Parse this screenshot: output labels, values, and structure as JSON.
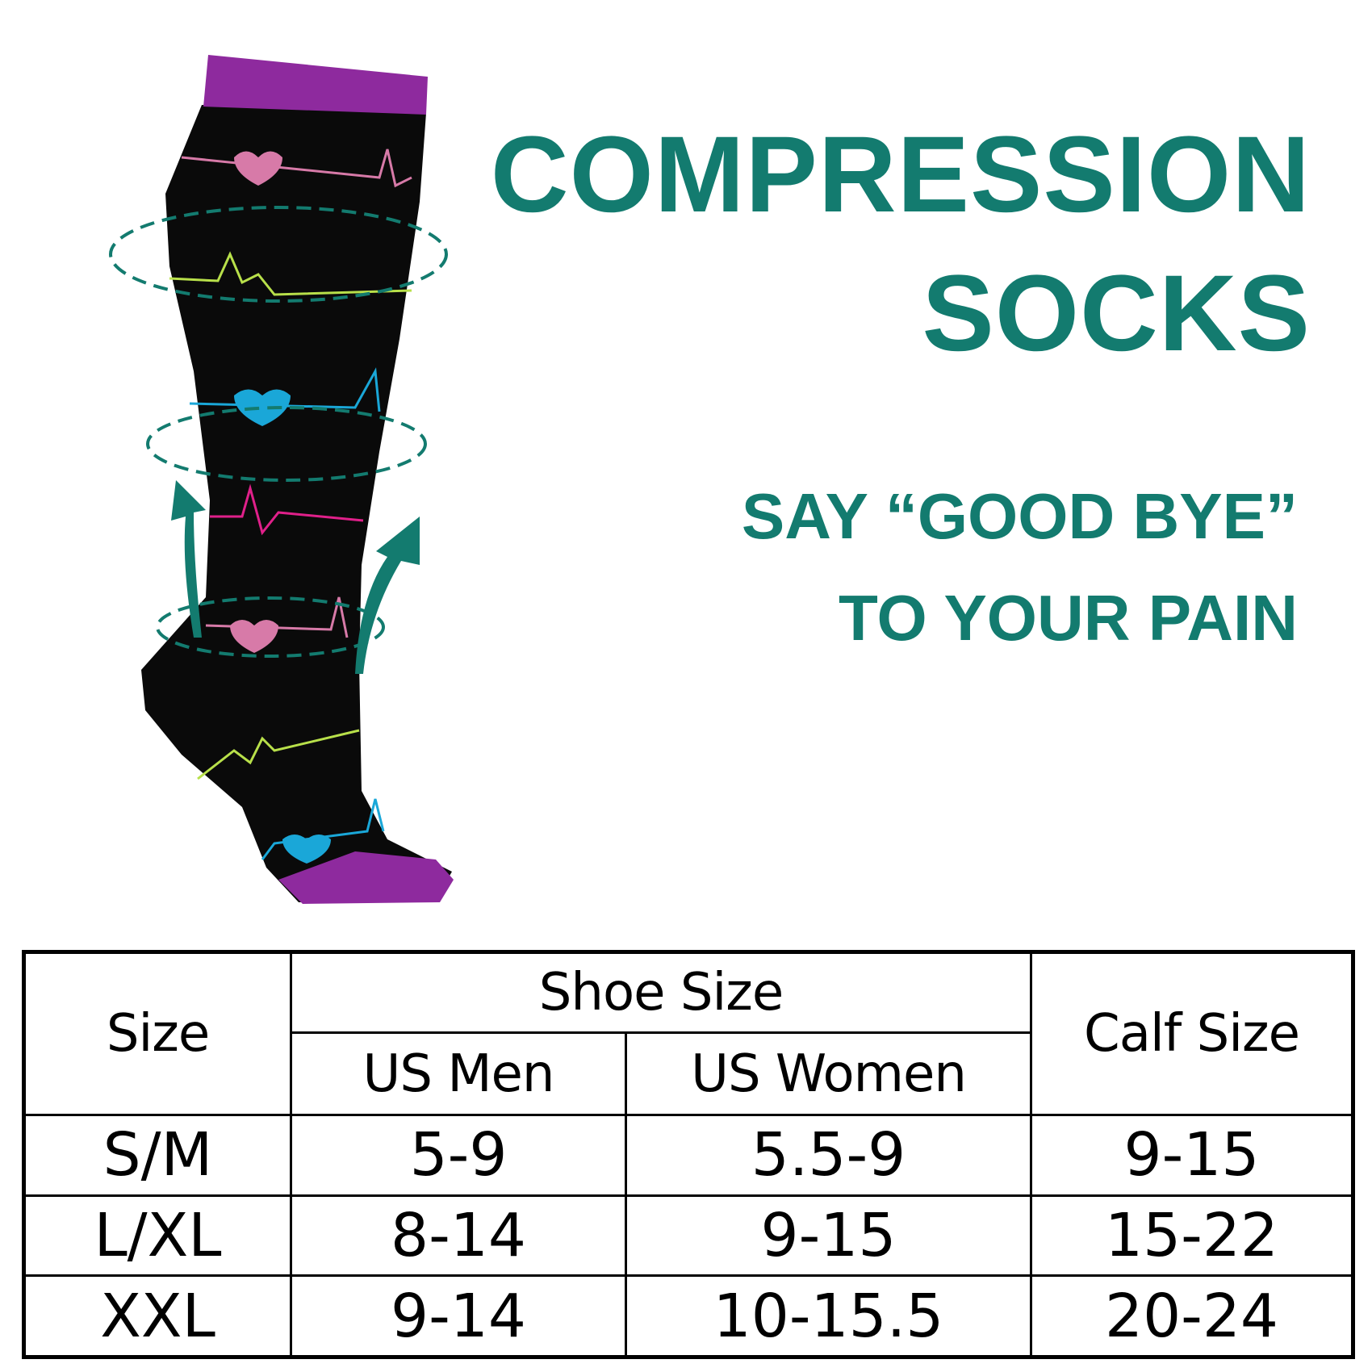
{
  "headline": {
    "line1": "COMPRESSION",
    "line2": "SOCKS"
  },
  "tagline": {
    "line1": "SAY “GOOD BYE”",
    "line2": "TO YOUR PAIN"
  },
  "colors": {
    "accent": "#137b6f",
    "sock_body": "#0a0a0a",
    "sock_trim": "#8e2a9e"
  },
  "size_chart": {
    "headers": {
      "size": "Size",
      "shoe_size": "Shoe Size",
      "us_men": "US Men",
      "us_women": "US Women",
      "calf_size": "Calf Size"
    },
    "rows": [
      {
        "size": "S/M",
        "us_men": "5-9",
        "us_women": "5.5-9",
        "calf": "9-15"
      },
      {
        "size": "L/XL",
        "us_men": "8-14",
        "us_women": "9-15",
        "calf": "15-22"
      },
      {
        "size": "XXL",
        "us_men": "9-14",
        "us_women": "10-15.5",
        "calf": "20-24"
      }
    ]
  }
}
